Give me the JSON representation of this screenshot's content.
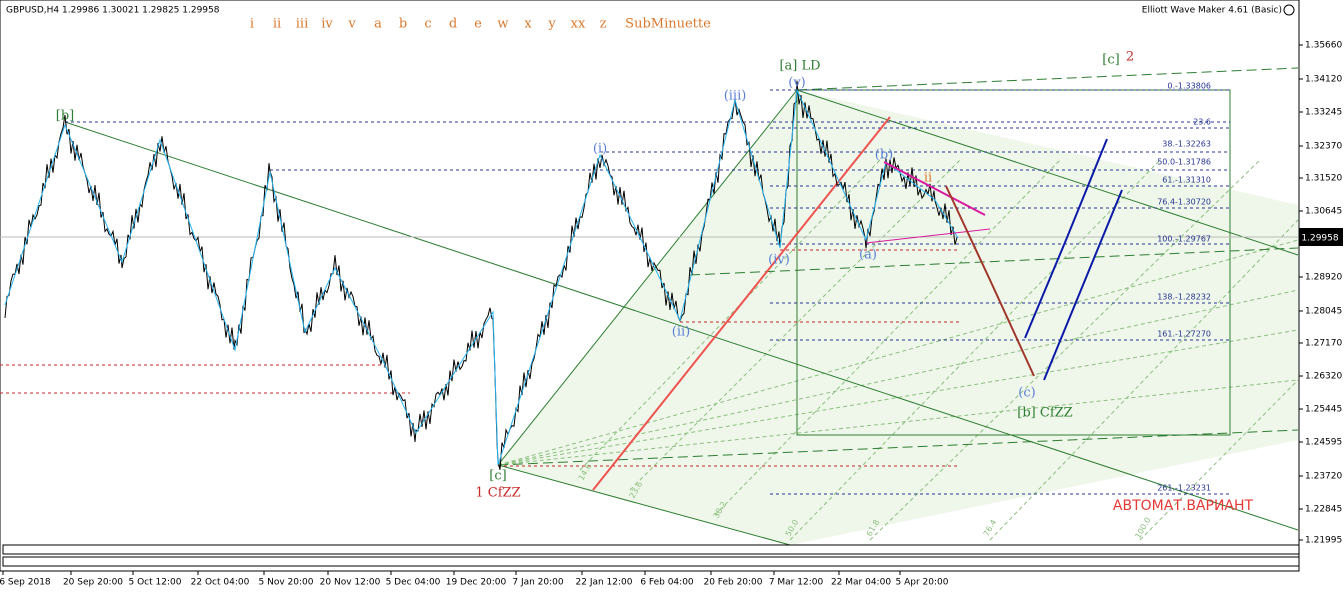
{
  "header": {
    "symbol_info": "GBPUSD,H4  1.29986 1.30021 1.29825 1.29958",
    "tool_name": "Elliott Wave Maker 4.61 (Basic)"
  },
  "wave_degrees": [
    "i",
    "ii",
    "iii",
    "iv",
    "v",
    "a",
    "b",
    "c",
    "d",
    "e",
    "w",
    "x",
    "y",
    "xx",
    "z",
    "SubMinuette"
  ],
  "price_axis": [
    "1.35660",
    "1.34120",
    "1.33245",
    "1.32370",
    "1.31520",
    "1.30645",
    "1.28920",
    "1.28045",
    "1.27170",
    "1.26320",
    "1.25445",
    "1.24595",
    "1.23720",
    "1.22845",
    "1.21995"
  ],
  "current_price": "1.29958",
  "time_axis": [
    "6 Sep 2018",
    "20 Sep 20:00",
    "5 Oct 12:00",
    "22 Oct 04:00",
    "5 Nov 20:00",
    "20 Nov 12:00",
    "5 Dec 04:00",
    "19 Dec 20:00",
    "7 Jan 20:00",
    "22 Jan 12:00",
    "6 Feb 04:00",
    "20 Feb 20:00",
    "7 Mar 12:00",
    "22 Mar 04:00",
    "5 Apr 20:00"
  ],
  "fib_levels": [
    "0.-1.33806",
    "23.6",
    "38.-1.32263",
    "50.0-1.31786",
    "61.-1.31310",
    "76.4-1.30720",
    "100.-1.29767",
    "138.-1.28232",
    "161.-1.27270",
    "261.-1.23231"
  ],
  "wave_labels": [
    "[b]",
    "(i)",
    "(iii)",
    "[a] LD",
    "(v)",
    "(b)",
    "ii",
    "(iv)",
    "(a)",
    "(ii)",
    "(c)",
    "[b] CfZZ",
    "[c]",
    "1 CfZZ",
    "[c]",
    "2"
  ],
  "fan_labels": [
    "14.6",
    "23.6",
    "38.2",
    "50.0",
    "61.8",
    "76.4",
    "100.0"
  ],
  "variant_label": "АВТОМАТ.ВАРИАНТ"
}
